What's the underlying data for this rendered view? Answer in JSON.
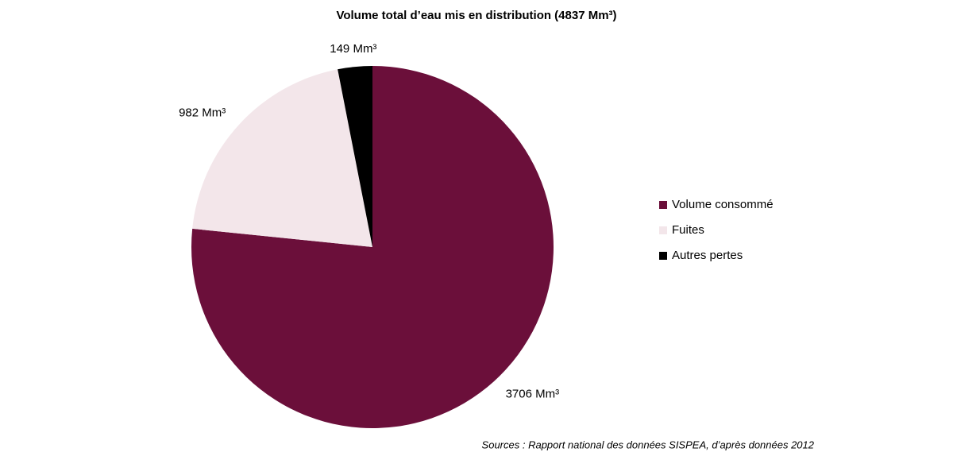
{
  "chart_data": {
    "type": "pie",
    "title": "Volume total d’eau mis en distribution (4837 Mm³)",
    "categories": [
      "Volume consommé",
      "Fuites",
      "Autres pertes"
    ],
    "values": [
      3706,
      982,
      149
    ],
    "value_labels": [
      "3706 Mm³",
      "982 Mm³",
      "149 Mm³"
    ],
    "colors": [
      "#6b0f3a",
      "#f3e6ea",
      "#000000"
    ],
    "legend": "right",
    "source": "Sources : Rapport national des données SISPEA, d’après données 2012"
  }
}
